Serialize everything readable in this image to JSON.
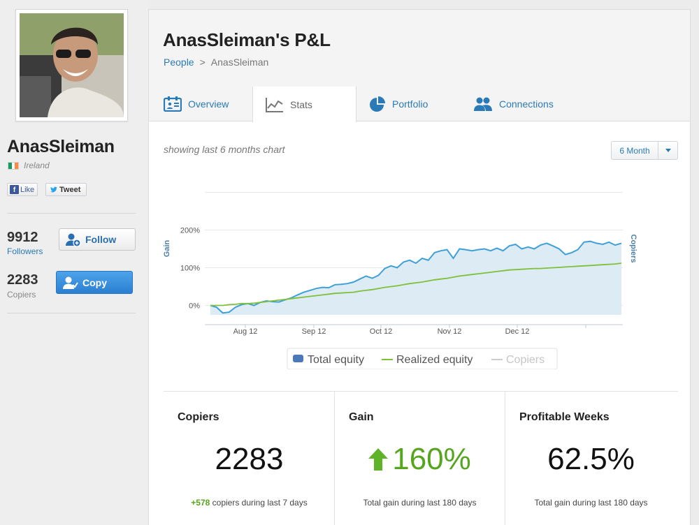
{
  "profile": {
    "name": "AnasSleiman",
    "country": "Ireland",
    "flag_colors": [
      "#169b62",
      "#ffffff",
      "#ff883e"
    ]
  },
  "social": {
    "like_label": "Like",
    "tweet_label": "Tweet"
  },
  "followers": {
    "count": "9912",
    "label": "Followers",
    "button": "Follow"
  },
  "copiers": {
    "count": "2283",
    "label": "Copiers",
    "button": "Copy"
  },
  "header": {
    "title": "AnasSleiman's P&L",
    "breadcrumb": {
      "root": "People",
      "separator": ">",
      "current": "AnasSleiman"
    }
  },
  "tabs": [
    {
      "label": "Overview",
      "icon": "overview-icon"
    },
    {
      "label": "Stats",
      "icon": "stats-icon",
      "active": true
    },
    {
      "label": "Portfolio",
      "icon": "pie-chart-icon"
    },
    {
      "label": "Connections",
      "icon": "people-icon"
    }
  ],
  "chart_controls": {
    "caption": "showing last 6 months chart",
    "range": "6 Month"
  },
  "chart_data": {
    "type": "line",
    "y_axis_left_label": "Gain",
    "y_axis_right_label": "Copiers",
    "y_tick_labels": [
      "200%",
      "100%",
      "0%"
    ],
    "x_tick_labels": [
      "Aug 12",
      "Sep 12",
      "Oct 12",
      "Nov 12",
      "Dec 12"
    ],
    "ylim": [
      -25,
      325
    ],
    "grid": true,
    "legend_position": "bottom",
    "series": [
      {
        "name": "Total equity",
        "color": "#3fa0d8",
        "style": "area",
        "values": [
          0,
          -5,
          -20,
          -18,
          -5,
          2,
          5,
          0,
          8,
          12,
          10,
          9,
          15,
          20,
          28,
          35,
          40,
          45,
          48,
          47,
          55,
          56,
          58,
          62,
          70,
          78,
          72,
          80,
          98,
          105,
          100,
          115,
          120,
          112,
          125,
          120,
          140,
          145,
          148,
          125,
          150,
          148,
          145,
          148,
          150,
          145,
          152,
          145,
          158,
          162,
          150,
          155,
          150,
          160,
          165,
          158,
          150,
          135,
          140,
          148,
          168,
          170,
          165,
          162,
          168,
          160,
          165
        ]
      },
      {
        "name": "Realized equity",
        "color": "#7ec03a",
        "style": "line",
        "values": [
          0,
          0,
          0,
          2,
          3,
          5,
          5,
          6,
          8,
          10,
          12,
          14,
          16,
          18,
          20,
          22,
          24,
          26,
          28,
          30,
          32,
          33,
          34,
          35,
          38,
          40,
          42,
          45,
          48,
          50,
          52,
          55,
          58,
          60,
          62,
          65,
          68,
          70,
          72,
          75,
          78,
          80,
          82,
          84,
          86,
          88,
          90,
          92,
          94,
          95,
          96,
          97,
          98,
          98,
          99,
          100,
          101,
          102,
          103,
          104,
          105,
          106,
          107,
          108,
          109,
          110,
          112
        ]
      },
      {
        "name": "Copiers",
        "color": "#cccccc",
        "style": "line",
        "values": []
      }
    ]
  },
  "summary": [
    {
      "title": "Copiers",
      "value": "2283",
      "highlight": "+578",
      "subtitle": " copiers during last 7 days"
    },
    {
      "title": "Gain",
      "value": "160%",
      "subtitle": "Total gain during last 180 days",
      "trend": "up"
    },
    {
      "title": "Profitable Weeks",
      "value": "62.5%",
      "subtitle": "Total gain during last 180 days"
    }
  ]
}
